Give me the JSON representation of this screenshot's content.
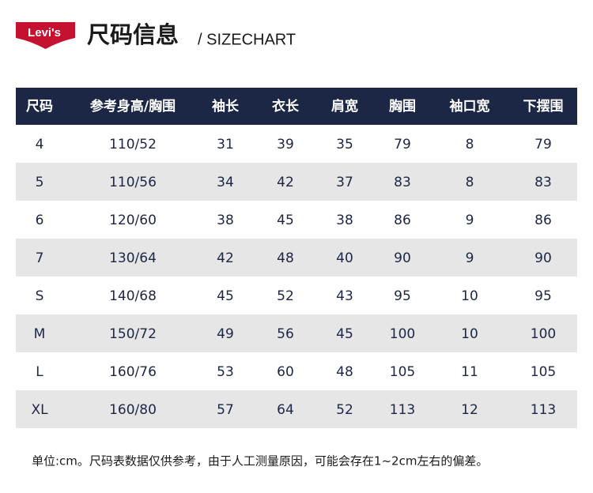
{
  "header": {
    "logo": "Levi's",
    "title": "尺码信息",
    "subtitle": "/ SIZECHART"
  },
  "table": {
    "columns": [
      "尺码",
      "参考身高/胸围",
      "袖长",
      "衣长",
      "肩宽",
      "胸围",
      "袖口宽",
      "下摆围"
    ],
    "rows": [
      [
        "4",
        "110/52",
        31,
        39,
        35,
        79,
        8,
        79
      ],
      [
        "5",
        "110/56",
        34,
        42,
        37,
        83,
        8,
        83
      ],
      [
        "6",
        "120/60",
        38,
        45,
        38,
        86,
        9,
        86
      ],
      [
        "7",
        "130/64",
        42,
        48,
        40,
        90,
        9,
        90
      ],
      [
        "S",
        "140/68",
        45,
        52,
        43,
        95,
        10,
        95
      ],
      [
        "M",
        "150/72",
        49,
        56,
        45,
        100,
        10,
        100
      ],
      [
        "L",
        "160/76",
        53,
        60,
        48,
        105,
        11,
        105
      ],
      [
        "XL",
        "160/80",
        57,
        64,
        52,
        113,
        12,
        113
      ]
    ]
  },
  "footer": {
    "note": "单位:cm。尺码表数据仅供参考，由于人工测量原因，可能会存在1~2cm左右的偏差。"
  }
}
